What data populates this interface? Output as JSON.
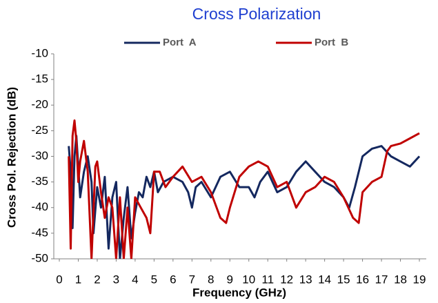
{
  "chart_data": {
    "type": "line",
    "title": "Cross Polarization",
    "x_label": "Frequency  (GHz)",
    "y_label": "Cross Pol. Rejection  (dB)",
    "xlim": [
      0,
      19
    ],
    "xticks": [
      0,
      1,
      2,
      3,
      4,
      5,
      6,
      7,
      8,
      9,
      10,
      11,
      12,
      13,
      14,
      15,
      16,
      17,
      18,
      19
    ],
    "ylim": [
      -50,
      -10
    ],
    "yticks": [
      -10,
      -15,
      -20,
      -25,
      -30,
      -35,
      -40,
      -45,
      -50
    ],
    "series": [
      {
        "name": "Port  A",
        "color": "#14285f",
        "x": [
          0.5,
          0.6,
          0.7,
          0.8,
          0.9,
          1.0,
          1.1,
          1.3,
          1.5,
          1.7,
          1.8,
          2.0,
          2.2,
          2.4,
          2.6,
          2.8,
          3.0,
          3.2,
          3.4,
          3.6,
          3.8,
          4.0,
          4.2,
          4.4,
          4.6,
          4.8,
          5.0,
          5.2,
          5.5,
          6.0,
          6.5,
          6.8,
          7.0,
          7.2,
          7.5,
          8.0,
          8.5,
          9.0,
          9.5,
          10.0,
          10.3,
          10.6,
          11.0,
          11.5,
          12.0,
          12.5,
          13.0,
          13.5,
          14.0,
          14.5,
          15.0,
          15.3,
          15.6,
          16.0,
          16.5,
          17.0,
          17.5,
          18.0,
          18.5,
          19.0
        ],
        "values": [
          -28,
          -33,
          -44,
          -30,
          -26,
          -32,
          -38,
          -33,
          -30,
          -35,
          -45,
          -36,
          -40,
          -34,
          -48,
          -38,
          -35,
          -50,
          -42,
          -36,
          -46,
          -41,
          -37,
          -38,
          -34,
          -36,
          -33,
          -37,
          -35,
          -34,
          -35,
          -37,
          -40,
          -36,
          -35,
          -38,
          -34,
          -33,
          -36,
          -36,
          -38,
          -35,
          -33,
          -37,
          -36,
          -33,
          -31,
          -33,
          -35,
          -36,
          -38,
          -40,
          -36,
          -30,
          -28.5,
          -28,
          -30,
          -31,
          -32,
          -30
        ]
      },
      {
        "name": "Port  B",
        "color": "#c00000",
        "x": [
          0.5,
          0.6,
          0.7,
          0.8,
          0.9,
          1.0,
          1.1,
          1.3,
          1.5,
          1.7,
          1.9,
          2.0,
          2.2,
          2.4,
          2.6,
          2.8,
          3.0,
          3.2,
          3.4,
          3.6,
          3.8,
          4.0,
          4.3,
          4.6,
          4.8,
          5.0,
          5.3,
          5.6,
          6.0,
          6.5,
          7.0,
          7.5,
          8.0,
          8.5,
          8.8,
          9.0,
          9.5,
          10.0,
          10.5,
          11.0,
          11.5,
          12.0,
          12.5,
          13.0,
          13.5,
          14.0,
          14.5,
          15.0,
          15.5,
          15.8,
          16.0,
          16.5,
          17.0,
          17.3,
          17.5,
          18.0,
          18.5,
          19.0
        ],
        "values": [
          -30,
          -48,
          -26,
          -23,
          -27,
          -35,
          -31,
          -27,
          -33,
          -50,
          -32,
          -31,
          -37,
          -42,
          -38,
          -40,
          -50,
          -38,
          -50,
          -40,
          -50,
          -38,
          -40,
          -42,
          -45,
          -33,
          -33,
          -36,
          -34,
          -32,
          -35,
          -34,
          -37,
          -42,
          -43,
          -40,
          -34,
          -32,
          -31,
          -32,
          -36,
          -35,
          -40,
          -37,
          -36,
          -34,
          -35,
          -38,
          -42,
          -43,
          -37,
          -35,
          -34,
          -29,
          -28,
          -27.5,
          -26.5,
          -25.5
        ]
      }
    ]
  }
}
